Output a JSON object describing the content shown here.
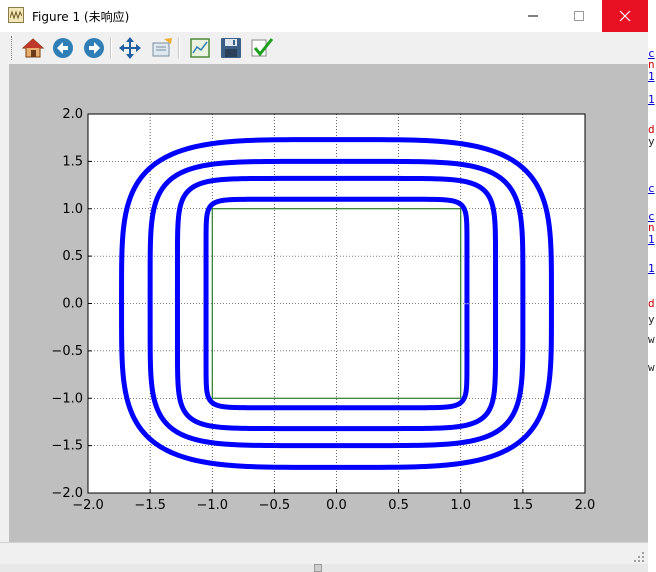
{
  "window": {
    "title": "Figure 1 (未响应)"
  },
  "toolbar": {
    "tools": [
      "home-icon",
      "back-arrow-icon",
      "forward-arrow-icon",
      "pan-move-icon",
      "zoom-icon",
      "configure-subplots-icon",
      "save-disk-icon",
      "edit-check-icon"
    ]
  },
  "chart_data": {
    "type": "line",
    "xlim": [
      -2.0,
      2.0
    ],
    "ylim": [
      -2.0,
      2.0
    ],
    "xticks": [
      "−2.0",
      "−1.5",
      "−1.0",
      "−0.5",
      "0.0",
      "0.5",
      "1.0",
      "1.5",
      "2.0"
    ],
    "yticks": [
      "2.0",
      "1.5",
      "1.0",
      "0.5",
      "0.0",
      "−0.5",
      "−1.0",
      "−1.5",
      "−2.0"
    ],
    "grid": true,
    "series": [
      {
        "color": "#006400",
        "shape": "square",
        "x": [
          -1.0,
          1.0,
          1.0,
          -1.0,
          -1.0
        ],
        "y": [
          -1.0,
          -1.0,
          1.0,
          1.0,
          -1.0
        ]
      },
      {
        "color": "#0000ff",
        "shape": "superellipse",
        "rx": 1.05,
        "ry": 1.1,
        "n": 14
      },
      {
        "color": "#0000ff",
        "shape": "superellipse",
        "rx": 1.28,
        "ry": 1.32,
        "n": 8
      },
      {
        "color": "#0000ff",
        "shape": "superellipse",
        "rx": 1.5,
        "ry": 1.5,
        "n": 5.5
      },
      {
        "color": "#0000ff",
        "shape": "superellipse",
        "rx": 1.73,
        "ry": 1.73,
        "n": 4.2
      }
    ]
  },
  "right_strip": {
    "fragments": [
      {
        "text": "c",
        "color": "blue"
      },
      {
        "text": "n",
        "color": "red"
      },
      {
        "text": "1",
        "color": "blue"
      },
      {
        "text": "1",
        "color": "blue"
      },
      {
        "text": "d",
        "color": "red"
      },
      {
        "text": "y",
        "color": "black"
      },
      {
        "text": "c",
        "color": "blue"
      },
      {
        "text": "c",
        "color": "blue"
      },
      {
        "text": "n",
        "color": "red"
      },
      {
        "text": "1",
        "color": "blue"
      },
      {
        "text": "1",
        "color": "blue"
      },
      {
        "text": "d",
        "color": "red"
      },
      {
        "text": "y",
        "color": "black"
      },
      {
        "text": "w",
        "color": "black"
      },
      {
        "text": "w",
        "color": "black"
      }
    ]
  }
}
